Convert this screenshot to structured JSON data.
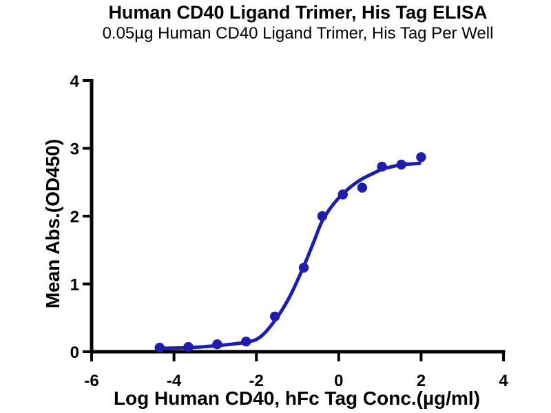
{
  "chart_data": {
    "type": "scatter",
    "title": "Human CD40 Ligand Trimer, His Tag ELISA",
    "subtitle": "0.05µg Human CD40 Ligand Trimer, His Tag Per Well",
    "xlabel": "Log Human CD40, hFc Tag Conc.(µg/ml)",
    "ylabel": "Mean Abs.(OD450)",
    "xlim": [
      -6,
      4
    ],
    "ylim": [
      0,
      4
    ],
    "xticks": [
      -6,
      -4,
      -2,
      0,
      2,
      4
    ],
    "yticks": [
      0,
      1,
      2,
      3,
      4
    ],
    "grid": false,
    "legend_position": "none",
    "colors": {
      "point": "#1e1eae",
      "curve": "#1e1eae",
      "axis": "#000000",
      "background": "#ffffff",
      "text": "#000000"
    },
    "series": [
      {
        "name": "Mean Abs.(OD450) data points",
        "kind": "scatter",
        "marker": "circle",
        "points": [
          [
            -4.35,
            0.06
          ],
          [
            -3.65,
            0.07
          ],
          [
            -2.95,
            0.11
          ],
          [
            -2.25,
            0.15
          ],
          [
            -1.55,
            0.52
          ],
          [
            -0.85,
            1.24
          ],
          [
            -0.4,
            2.0
          ],
          [
            0.1,
            2.32
          ],
          [
            0.57,
            2.42
          ],
          [
            1.05,
            2.73
          ],
          [
            1.52,
            2.76
          ],
          [
            2.0,
            2.87
          ]
        ]
      },
      {
        "name": "4PL sigmoid fit curve",
        "kind": "line",
        "points": [
          [
            -4.35,
            0.05
          ],
          [
            -3.65,
            0.06
          ],
          [
            -2.95,
            0.09
          ],
          [
            -2.25,
            0.14
          ],
          [
            -1.9,
            0.22
          ],
          [
            -1.55,
            0.46
          ],
          [
            -1.2,
            0.8
          ],
          [
            -0.85,
            1.26
          ],
          [
            -0.6,
            1.63
          ],
          [
            -0.4,
            1.93
          ],
          [
            -0.15,
            2.16
          ],
          [
            0.1,
            2.33
          ],
          [
            0.35,
            2.46
          ],
          [
            0.57,
            2.55
          ],
          [
            0.8,
            2.62
          ],
          [
            1.05,
            2.69
          ],
          [
            1.3,
            2.73
          ],
          [
            1.52,
            2.76
          ],
          [
            1.75,
            2.77
          ],
          [
            2.0,
            2.78
          ]
        ]
      }
    ]
  }
}
